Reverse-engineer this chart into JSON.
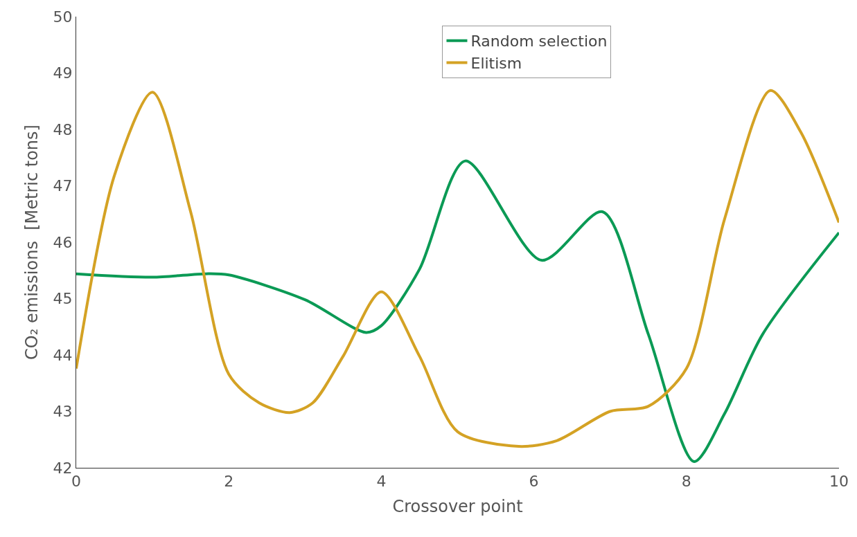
{
  "chart_data": {
    "type": "line",
    "xlabel": "Crossover point",
    "ylabel": "CO₂ emissions  [Metric tons]",
    "xlim": [
      0,
      10
    ],
    "xticks": [
      0,
      2,
      4,
      6,
      8,
      10
    ],
    "ylim": [
      42,
      50
    ],
    "yticks": [
      42,
      43,
      44,
      45,
      46,
      47,
      48,
      49,
      50
    ],
    "legend": "top right",
    "marker": "none",
    "line_style": "solid",
    "series": [
      {
        "name": "Random selection",
        "color": "#0b9a55",
        "x": [
          0,
          1,
          1.7,
          2,
          3,
          3.8,
          4,
          4.5,
          5.1,
          6.1,
          6.9,
          7.5,
          8.1,
          8.5,
          9,
          10
        ],
        "values": [
          45.44,
          45.38,
          45.44,
          45.42,
          44.98,
          44.4,
          44.52,
          45.52,
          47.44,
          45.68,
          46.54,
          44.37,
          42.11,
          42.96,
          44.37,
          46.17
        ]
      },
      {
        "name": "Elitism",
        "color": "#d4a224",
        "x": [
          0,
          0.5,
          1,
          1.5,
          2,
          2.4,
          2.8,
          3.1,
          3.5,
          4,
          4.5,
          5,
          5.8,
          6.3,
          7,
          7.5,
          8,
          8.5,
          9.1,
          9.5,
          10
        ],
        "values": [
          43.76,
          47.18,
          48.66,
          46.54,
          43.66,
          43.15,
          42.98,
          43.15,
          43.98,
          45.12,
          43.98,
          42.64,
          42.38,
          42.48,
          43.0,
          43.09,
          43.76,
          46.41,
          48.69,
          47.95,
          46.35
        ]
      }
    ]
  }
}
